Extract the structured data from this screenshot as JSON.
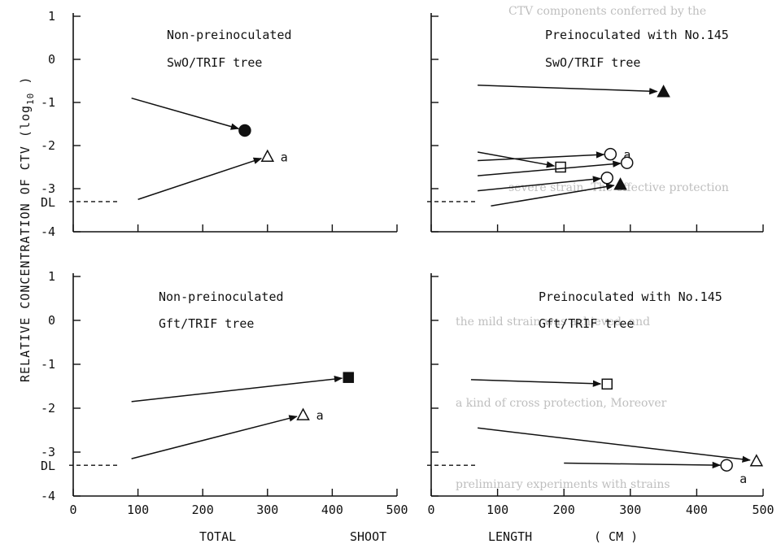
{
  "background_text": [
    "CTV components conferred by the",
    "severe strain. The effective protection",
    "the mild strain was achieved, and",
    "a kind of cross protection, Moreover",
    "preliminary experiments with strains"
  ],
  "figure": {
    "ylabel": "RELATIVE CONCENTRATION OF CTV (log10 )",
    "ylabel_parts": {
      "main": "RELATIVE CONCENTRATION OF CTV (log",
      "sub": "10",
      "tail": " )"
    },
    "xlabel": "TOTAL SHOOT LENGTH ( CM )",
    "xlabel_parts": [
      "TOTAL",
      "SHOOT",
      "LENGTH",
      "( CM )"
    ],
    "dl_label": "DL"
  },
  "chart_data": [
    {
      "type": "scatter",
      "panel": "top-left",
      "text_lines": [
        "Non-preinoculated",
        "SwO/TRIF tree"
      ],
      "x_ticks": [],
      "y_ticks": [
        "1",
        "0",
        "-1",
        "-2",
        "-3",
        "-4"
      ],
      "ylim": [
        -4,
        1
      ],
      "xlim": [
        0,
        500
      ],
      "detection_limit": -3.3,
      "markers": [
        {
          "x": 265,
          "y": -1.65,
          "symbol": "filled-circle",
          "label": "",
          "from": [
            90,
            -0.9
          ]
        },
        {
          "x": 300,
          "y": -2.25,
          "symbol": "open-triangle",
          "label": "a",
          "from": [
            100,
            -3.25
          ]
        }
      ]
    },
    {
      "type": "scatter",
      "panel": "top-right",
      "text_lines": [
        "Preinoculated with No.145",
        "SwO/TRIF tree"
      ],
      "x_ticks": [],
      "y_ticks": [],
      "ylim": [
        -4,
        1
      ],
      "xlim": [
        0,
        500
      ],
      "detection_limit": -3.3,
      "markers": [
        {
          "x": 350,
          "y": -0.75,
          "symbol": "filled-triangle",
          "label": "",
          "from": [
            70,
            -0.6
          ]
        },
        {
          "x": 195,
          "y": -2.5,
          "symbol": "open-square",
          "label": "",
          "from": [
            70,
            -2.15
          ]
        },
        {
          "x": 270,
          "y": -2.2,
          "symbol": "open-circle",
          "label": "a",
          "from": [
            70,
            -2.35
          ]
        },
        {
          "x": 295,
          "y": -2.4,
          "symbol": "open-circle",
          "label": "",
          "from": [
            70,
            -2.7
          ]
        },
        {
          "x": 265,
          "y": -2.75,
          "symbol": "open-circle",
          "label": "",
          "from": [
            70,
            -3.05
          ]
        },
        {
          "x": 285,
          "y": -2.9,
          "symbol": "filled-triangle",
          "label": "",
          "from": [
            90,
            -3.4
          ]
        }
      ]
    },
    {
      "type": "scatter",
      "panel": "bottom-left",
      "text_lines": [
        "Non-preinoculated",
        "Gft/TRIF tree"
      ],
      "x_ticks": [
        "0",
        "100",
        "200",
        "300",
        "400",
        "500"
      ],
      "y_ticks": [
        "1",
        "0",
        "-1",
        "-2",
        "-3",
        "-4"
      ],
      "ylim": [
        -4,
        1
      ],
      "xlim": [
        0,
        500
      ],
      "detection_limit": -3.3,
      "markers": [
        {
          "x": 425,
          "y": -1.3,
          "symbol": "filled-square",
          "label": "",
          "from": [
            90,
            -1.85
          ]
        },
        {
          "x": 355,
          "y": -2.15,
          "symbol": "open-triangle",
          "label": "a",
          "from": [
            90,
            -3.15
          ]
        }
      ]
    },
    {
      "type": "scatter",
      "panel": "bottom-right",
      "text_lines": [
        "Preinoculated with No.145",
        "Gft/TRIF tree"
      ],
      "x_ticks": [
        "0",
        "100",
        "200",
        "300",
        "400",
        "500"
      ],
      "y_ticks": [],
      "ylim": [
        -4,
        1
      ],
      "xlim": [
        0,
        500
      ],
      "detection_limit": -3.3,
      "markers": [
        {
          "x": 265,
          "y": -1.45,
          "symbol": "open-square",
          "label": "",
          "from": [
            60,
            -1.35
          ]
        },
        {
          "x": 490,
          "y": -3.2,
          "symbol": "open-triangle",
          "label": "",
          "from": [
            70,
            -2.45
          ]
        },
        {
          "x": 445,
          "y": -3.3,
          "symbol": "open-circle",
          "label": "a",
          "from": [
            200,
            -3.25
          ]
        }
      ]
    }
  ]
}
